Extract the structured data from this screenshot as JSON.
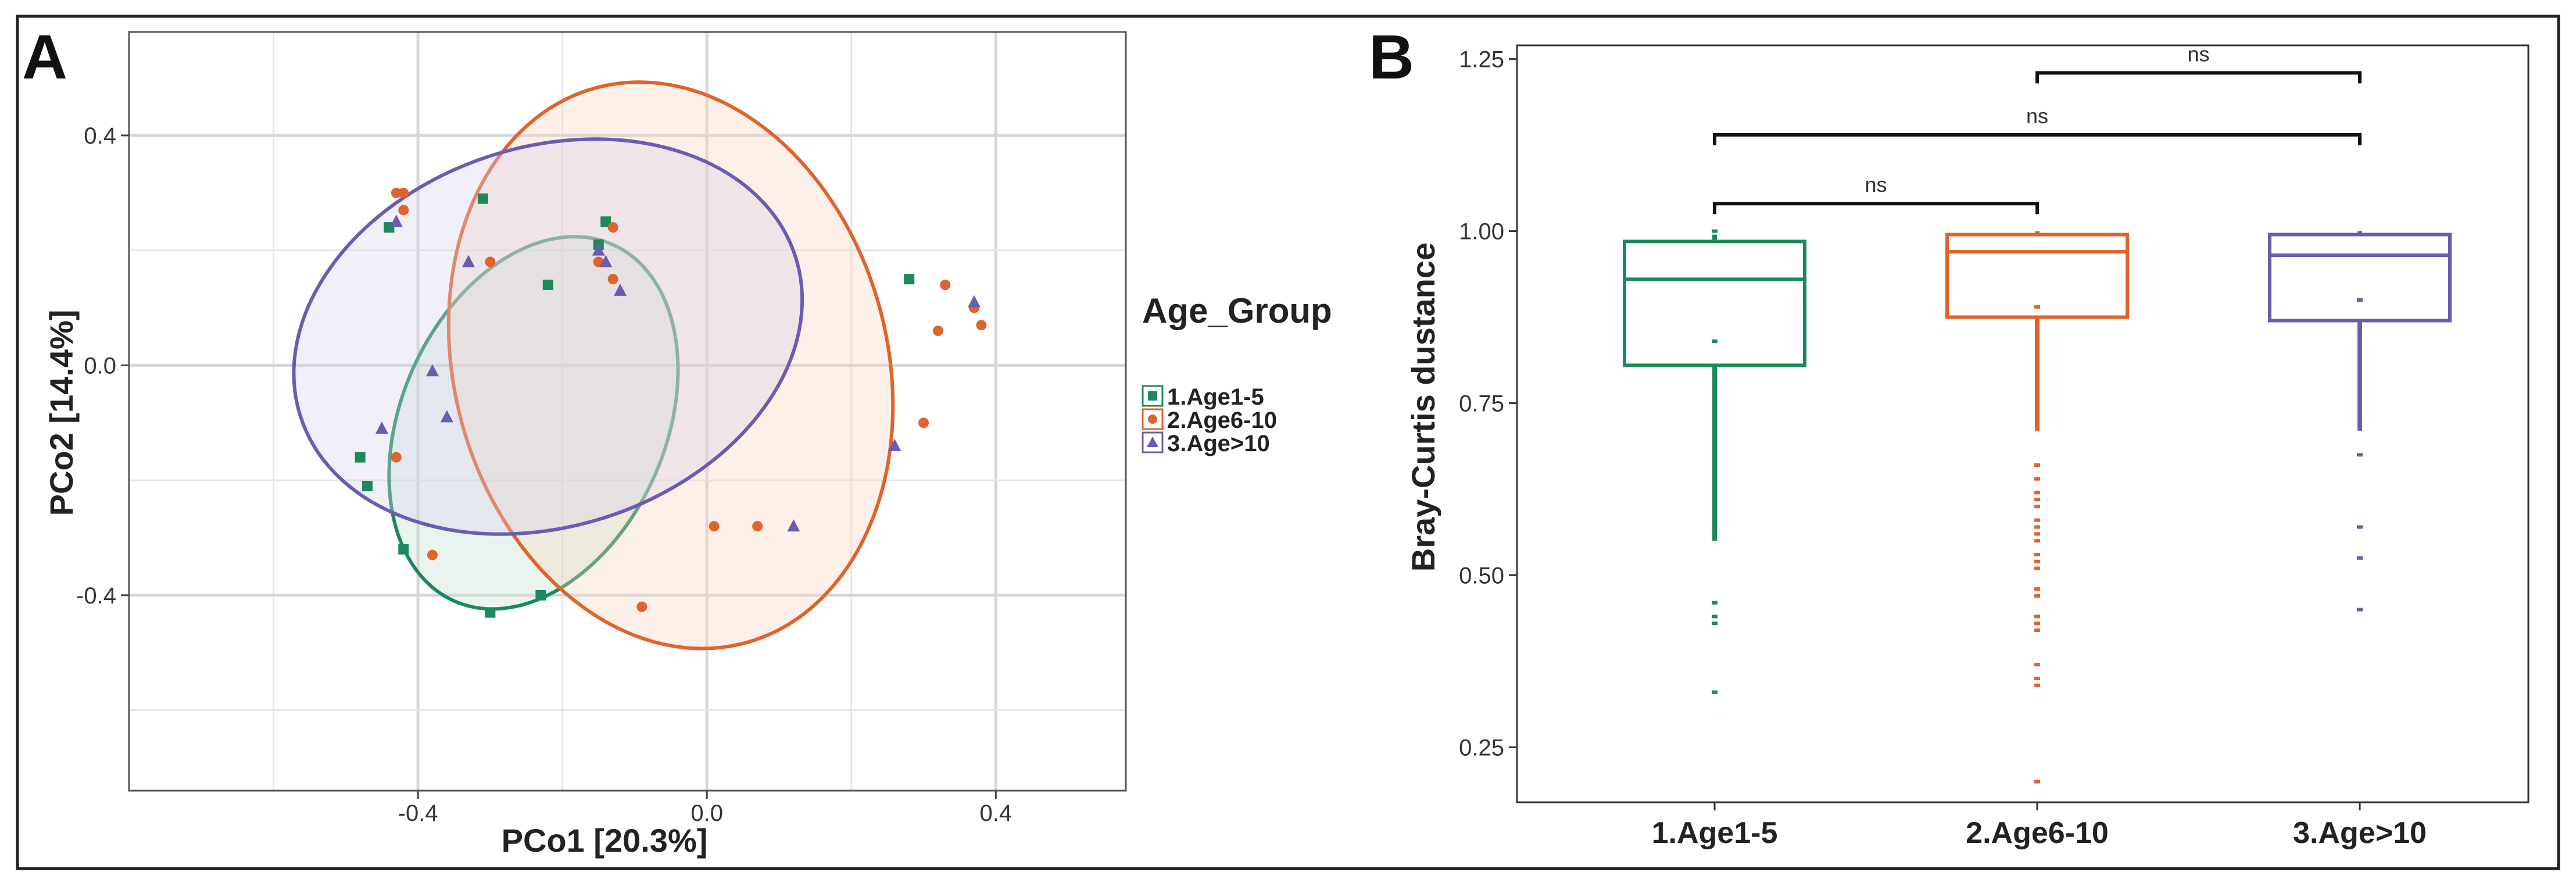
{
  "panel_a": {
    "label": "A",
    "chart_data": {
      "type": "scatter",
      "title": "",
      "xlabel": "PCo1 [20.3%]",
      "ylabel": "PCo2 [14.4%]",
      "xlim": [
        -0.8,
        0.58
      ],
      "ylim": [
        -0.74,
        0.58
      ],
      "x_ticks": [
        -0.4,
        0.0,
        0.4
      ],
      "x_tick_labels": [
        "-0.4",
        "0.0",
        "0.4"
      ],
      "y_ticks": [
        -0.4,
        0.0,
        0.4
      ],
      "y_tick_labels": [
        "-0.4",
        "0.0",
        "0.4"
      ],
      "grid": true,
      "legend_title": "Age_Group",
      "legend_position": "right",
      "series": [
        {
          "name": "1.Age1-5",
          "color": "#1b8a5a",
          "marker": "square",
          "points": [
            [
              -0.31,
              0.29
            ],
            [
              -0.44,
              0.24
            ],
            [
              -0.22,
              0.14
            ],
            [
              -0.14,
              0.25
            ],
            [
              -0.15,
              0.21
            ],
            [
              0.28,
              0.15
            ],
            [
              -0.48,
              -0.16
            ],
            [
              -0.47,
              -0.21
            ],
            [
              -0.42,
              -0.32
            ],
            [
              -0.3,
              -0.43
            ],
            [
              -0.23,
              -0.4
            ]
          ]
        },
        {
          "name": "2.Age6-10",
          "color": "#e0632b",
          "marker": "circle",
          "points": [
            [
              -0.42,
              0.3
            ],
            [
              -0.43,
              0.3
            ],
            [
              -0.42,
              0.27
            ],
            [
              -0.3,
              0.18
            ],
            [
              -0.13,
              0.24
            ],
            [
              -0.15,
              0.18
            ],
            [
              -0.13,
              0.15
            ],
            [
              0.33,
              0.14
            ],
            [
              0.37,
              0.1
            ],
            [
              0.38,
              0.07
            ],
            [
              0.32,
              0.06
            ],
            [
              0.3,
              -0.1
            ],
            [
              -0.43,
              -0.16
            ],
            [
              -0.38,
              -0.33
            ],
            [
              0.01,
              -0.28
            ],
            [
              0.07,
              -0.28
            ],
            [
              -0.09,
              -0.42
            ]
          ]
        },
        {
          "name": "3.Age>10",
          "color": "#6a5cb1",
          "marker": "triangle",
          "points": [
            [
              -0.43,
              0.25
            ],
            [
              -0.33,
              0.18
            ],
            [
              -0.15,
              0.2
            ],
            [
              -0.14,
              0.18
            ],
            [
              -0.12,
              0.13
            ],
            [
              0.37,
              0.11
            ],
            [
              -0.38,
              -0.01
            ],
            [
              -0.36,
              -0.09
            ],
            [
              -0.45,
              -0.11
            ],
            [
              0.26,
              -0.14
            ],
            [
              0.12,
              -0.28
            ]
          ]
        }
      ]
    }
  },
  "panel_b": {
    "label": "B",
    "chart_data": {
      "type": "box",
      "title": "",
      "xlabel": "",
      "ylabel": "Bray-Curtis dustance",
      "ylim": [
        0.17,
        1.27
      ],
      "y_ticks": [
        0.25,
        0.5,
        0.75,
        1.0,
        1.25
      ],
      "y_tick_labels": [
        "0.25",
        "0.50",
        "0.75",
        "1.00",
        "1.25"
      ],
      "categories": [
        "1.Age1-5",
        "2.Age6-10",
        "3.Age>10"
      ],
      "colors": [
        "#1b8a5a",
        "#e0632b",
        "#6a5cb1"
      ],
      "boxes": [
        {
          "whisker_low": 0.55,
          "q1": 0.805,
          "median": 0.93,
          "q3": 0.985,
          "whisker_high": 0.995,
          "outliers": [
            0.84,
            0.46,
            0.44,
            0.43,
            0.33,
            1.0
          ]
        },
        {
          "whisker_low": 0.71,
          "q1": 0.875,
          "median": 0.97,
          "q3": 0.995,
          "whisker_high": 1.0,
          "outliers": [
            0.89,
            0.66,
            0.64,
            0.62,
            0.61,
            0.6,
            0.58,
            0.57,
            0.56,
            0.55,
            0.53,
            0.52,
            0.51,
            0.48,
            0.47,
            0.44,
            0.43,
            0.42,
            0.37,
            0.35,
            0.34,
            0.2
          ]
        },
        {
          "whisker_low": 0.71,
          "q1": 0.87,
          "median": 0.965,
          "q3": 0.995,
          "whisker_high": 1.0,
          "outliers": [
            0.9,
            0.675,
            0.57,
            0.525,
            0.45
          ]
        }
      ],
      "significance": [
        {
          "from": 0,
          "to": 1,
          "y": 1.04,
          "label": "ns"
        },
        {
          "from": 0,
          "to": 2,
          "y": 1.14,
          "label": "ns"
        },
        {
          "from": 1,
          "to": 2,
          "y": 1.23,
          "label": "ns"
        }
      ]
    }
  }
}
